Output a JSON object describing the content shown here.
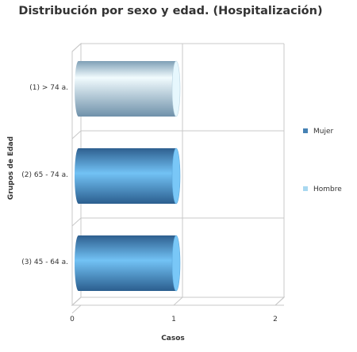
{
  "chart_data": {
    "type": "bar",
    "orientation": "horizontal",
    "title": "Distribución por sexo y edad. (Hospitalización)",
    "xlabel": "Casos",
    "ylabel": "Grupos de Edad",
    "categories": [
      "(1) > 74 a.",
      "(2) 65 - 74 a.",
      "(3) 45 - 64 a."
    ],
    "x_ticks": [
      0,
      1,
      2
    ],
    "xlim": [
      0,
      2
    ],
    "grid": true,
    "legend_position": "right",
    "series": [
      {
        "name": "Mujer",
        "values": [
          0,
          1,
          1
        ],
        "color": "#4682b4"
      },
      {
        "name": "Hombre",
        "values": [
          1,
          0,
          0
        ],
        "color": "#a8d8f0"
      }
    ]
  }
}
